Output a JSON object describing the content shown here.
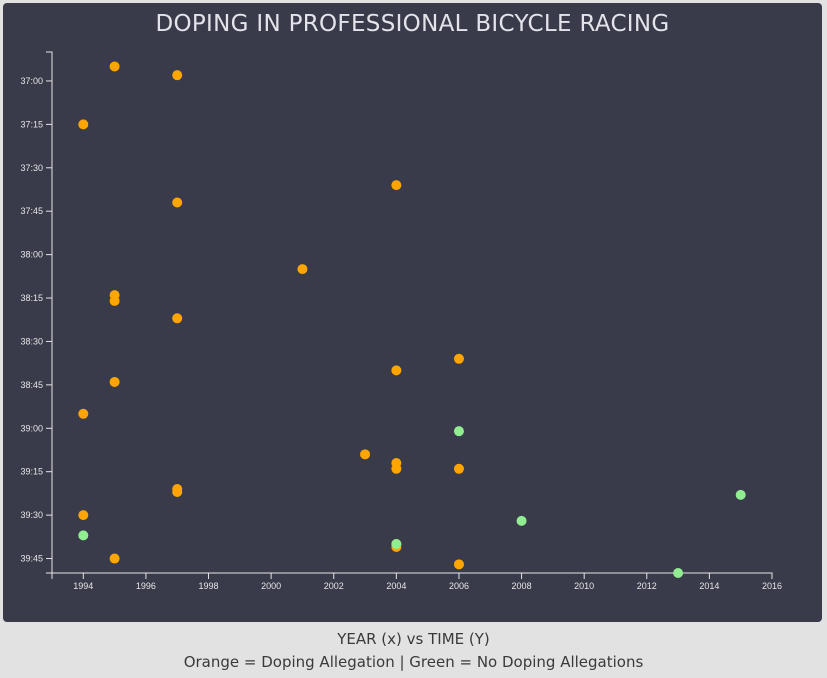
{
  "chart_data": {
    "type": "scatter",
    "title": "DOPING IN PROFESSIONAL BICYCLE RACING",
    "caption_line1": "YEAR (x) vs TIME (Y)",
    "caption_line2": "Orange = Doping Allegation | Green = No Doping Allegations",
    "xlim": [
      1993,
      2016
    ],
    "ylim": [
      "36:50",
      "39:50"
    ],
    "x_ticks": [
      "1994",
      "1996",
      "1998",
      "2000",
      "2002",
      "2004",
      "2006",
      "2008",
      "2010",
      "2012",
      "2014",
      "2016"
    ],
    "y_ticks": [
      "37:00",
      "37:15",
      "37:30",
      "37:45",
      "38:00",
      "38:15",
      "38:30",
      "38:45",
      "39:00",
      "39:15",
      "39:30",
      "39:45"
    ],
    "y_reversed": true,
    "grid": false,
    "colors": {
      "doping": "#ffa500",
      "clean": "#90ee90"
    },
    "series": [
      {
        "group": "doping",
        "points": [
          {
            "x": 1995,
            "y": "36:55"
          },
          {
            "x": 1997,
            "y": "36:58"
          },
          {
            "x": 1994,
            "y": "37:15"
          },
          {
            "x": 2004,
            "y": "37:36"
          },
          {
            "x": 1997,
            "y": "37:42"
          },
          {
            "x": 2001,
            "y": "38:05"
          },
          {
            "x": 1995,
            "y": "38:14"
          },
          {
            "x": 1995,
            "y": "38:16"
          },
          {
            "x": 1997,
            "y": "38:22"
          },
          {
            "x": 2006,
            "y": "38:36"
          },
          {
            "x": 2004,
            "y": "38:40"
          },
          {
            "x": 1995,
            "y": "38:44"
          },
          {
            "x": 1994,
            "y": "38:55"
          },
          {
            "x": 2003,
            "y": "39:09"
          },
          {
            "x": 2004,
            "y": "39:12"
          },
          {
            "x": 2004,
            "y": "39:14"
          },
          {
            "x": 2006,
            "y": "39:14"
          },
          {
            "x": 1997,
            "y": "39:21"
          },
          {
            "x": 1997,
            "y": "39:22"
          },
          {
            "x": 1994,
            "y": "39:30"
          },
          {
            "x": 2004,
            "y": "39:40"
          },
          {
            "x": 2004,
            "y": "39:41"
          },
          {
            "x": 1995,
            "y": "39:45"
          },
          {
            "x": 2006,
            "y": "39:47"
          }
        ]
      },
      {
        "group": "clean",
        "points": [
          {
            "x": 2006,
            "y": "39:01"
          },
          {
            "x": 2015,
            "y": "39:23"
          },
          {
            "x": 2008,
            "y": "39:32"
          },
          {
            "x": 1994,
            "y": "39:37"
          },
          {
            "x": 2004,
            "y": "39:40"
          },
          {
            "x": 2013,
            "y": "39:50"
          }
        ]
      }
    ]
  }
}
